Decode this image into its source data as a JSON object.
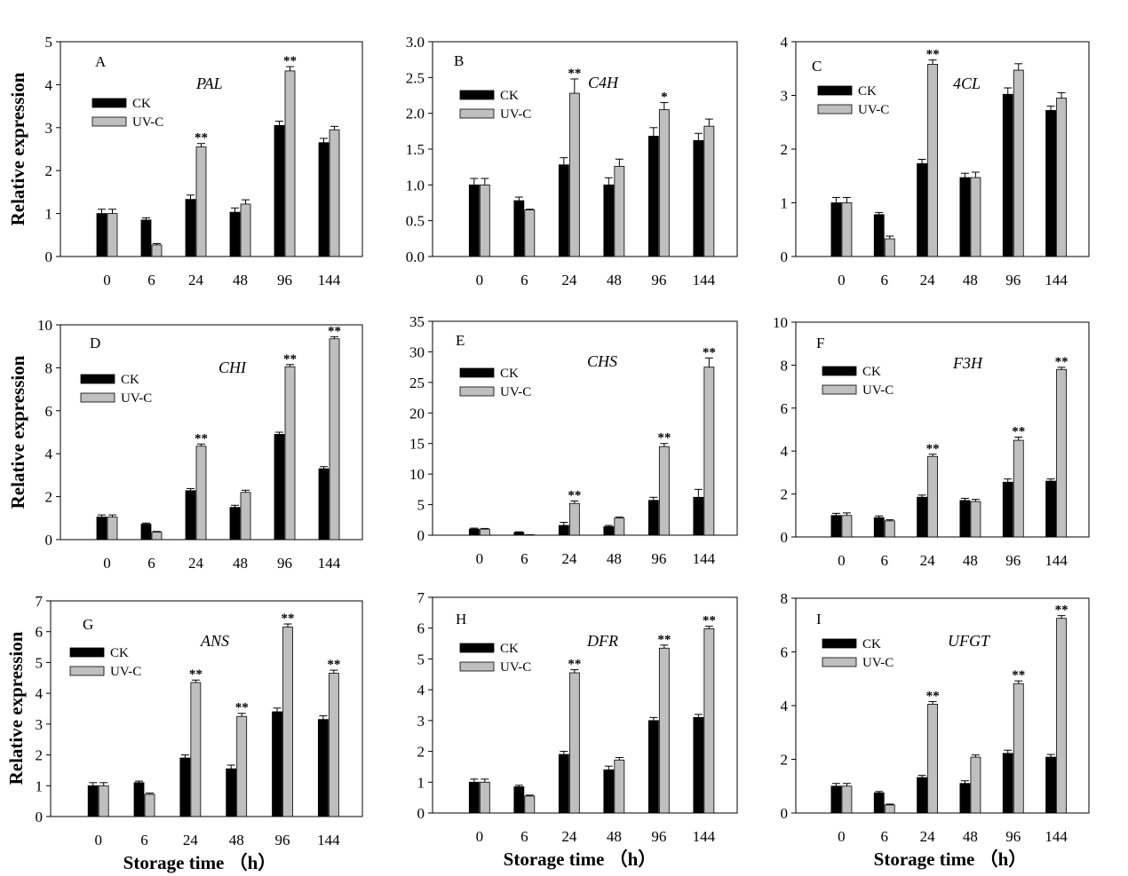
{
  "labels": {
    "ylabel": "Relative expression",
    "xlabel": "Storage time （h）"
  },
  "legend": {
    "ck": "CK",
    "uvc": "UV-C"
  },
  "colors": {
    "ck": "#000000",
    "uvc": "#bfbfbf"
  },
  "chart_data": [
    {
      "type": "bar",
      "letter": "A",
      "gene": "PAL",
      "categories": [
        "0",
        "6",
        "24",
        "48",
        "96",
        "144"
      ],
      "ylim": [
        0,
        5
      ],
      "yticks": [
        "0",
        "1",
        "2",
        "3",
        "4",
        "5"
      ],
      "series": [
        {
          "name": "CK",
          "values": [
            1.0,
            0.85,
            1.33,
            1.03,
            3.05,
            2.65
          ],
          "errors": [
            0.1,
            0.05,
            0.1,
            0.1,
            0.1,
            0.1
          ]
        },
        {
          "name": "UV-C",
          "values": [
            1.0,
            0.27,
            2.55,
            1.22,
            4.32,
            2.95
          ],
          "errors": [
            0.1,
            0.03,
            0.08,
            0.1,
            0.1,
            0.08
          ]
        }
      ],
      "significance": [
        "",
        "",
        "**",
        "",
        "**",
        ""
      ]
    },
    {
      "type": "bar",
      "letter": "B",
      "gene": "C4H",
      "categories": [
        "0",
        "6",
        "24",
        "48",
        "96",
        "144"
      ],
      "ylim": [
        0,
        3
      ],
      "yticks": [
        "0.0",
        "0.5",
        "1.0",
        "1.5",
        "2.0",
        "2.5",
        "3.0"
      ],
      "series": [
        {
          "name": "CK",
          "values": [
            1.0,
            0.78,
            1.28,
            1.0,
            1.68,
            1.62
          ],
          "errors": [
            0.09,
            0.05,
            0.1,
            0.1,
            0.12,
            0.1
          ]
        },
        {
          "name": "UV-C",
          "values": [
            1.0,
            0.65,
            2.28,
            1.26,
            2.05,
            1.82
          ],
          "errors": [
            0.09,
            0.01,
            0.2,
            0.1,
            0.1,
            0.1
          ]
        }
      ],
      "significance": [
        "",
        "",
        "**",
        "",
        "*",
        ""
      ]
    },
    {
      "type": "bar",
      "letter": "C",
      "gene": "4CL",
      "categories": [
        "0",
        "6",
        "24",
        "48",
        "96",
        "144"
      ],
      "ylim": [
        0,
        4
      ],
      "yticks": [
        "0",
        "1",
        "2",
        "3",
        "4"
      ],
      "series": [
        {
          "name": "CK",
          "values": [
            1.0,
            0.78,
            1.73,
            1.47,
            3.02,
            2.72
          ],
          "errors": [
            0.1,
            0.04,
            0.08,
            0.08,
            0.12,
            0.08
          ]
        },
        {
          "name": "UV-C",
          "values": [
            1.0,
            0.33,
            3.58,
            1.47,
            3.47,
            2.95
          ],
          "errors": [
            0.1,
            0.05,
            0.08,
            0.1,
            0.12,
            0.1
          ]
        }
      ],
      "significance": [
        "",
        "",
        "**",
        "",
        "",
        ""
      ]
    },
    {
      "type": "bar",
      "letter": "D",
      "gene": "CHI",
      "categories": [
        "0",
        "6",
        "24",
        "48",
        "96",
        "144"
      ],
      "ylim": [
        0,
        10
      ],
      "yticks": [
        "0",
        "2",
        "4",
        "6",
        "8",
        "10"
      ],
      "series": [
        {
          "name": "CK",
          "values": [
            1.05,
            0.72,
            2.28,
            1.5,
            4.9,
            3.3
          ],
          "errors": [
            0.1,
            0.05,
            0.1,
            0.1,
            0.1,
            0.1
          ]
        },
        {
          "name": "UV-C",
          "values": [
            1.05,
            0.35,
            4.35,
            2.2,
            8.05,
            9.35
          ],
          "errors": [
            0.1,
            0.03,
            0.1,
            0.1,
            0.1,
            0.1
          ]
        }
      ],
      "significance": [
        "",
        "",
        "**",
        "",
        "**",
        "**"
      ]
    },
    {
      "type": "bar",
      "letter": "E",
      "gene": "CHS",
      "categories": [
        "0",
        "6",
        "24",
        "48",
        "96",
        "144"
      ],
      "ylim": [
        0,
        35
      ],
      "yticks": [
        "0",
        "5",
        "10",
        "15",
        "20",
        "25",
        "30",
        "35"
      ],
      "series": [
        {
          "name": "CK",
          "values": [
            1.0,
            0.45,
            1.6,
            1.4,
            5.7,
            6.2
          ],
          "errors": [
            0.15,
            0.1,
            0.5,
            0.2,
            0.5,
            1.3
          ]
        },
        {
          "name": "UV-C",
          "values": [
            1.0,
            0.05,
            5.2,
            2.8,
            14.5,
            27.5
          ],
          "errors": [
            0.1,
            0.02,
            0.4,
            0.15,
            0.5,
            1.5
          ]
        }
      ],
      "significance": [
        "",
        "",
        "**",
        "",
        "**",
        "**"
      ]
    },
    {
      "type": "bar",
      "letter": "F",
      "gene": "F3H",
      "categories": [
        "0",
        "6",
        "24",
        "48",
        "96",
        "144"
      ],
      "ylim": [
        0,
        10
      ],
      "yticks": [
        "0",
        "2",
        "4",
        "6",
        "8",
        "10"
      ],
      "series": [
        {
          "name": "CK",
          "values": [
            1.0,
            0.9,
            1.85,
            1.7,
            2.55,
            2.6
          ],
          "errors": [
            0.1,
            0.08,
            0.1,
            0.1,
            0.15,
            0.1
          ]
        },
        {
          "name": "UV-C",
          "values": [
            1.0,
            0.75,
            3.75,
            1.65,
            4.5,
            7.8
          ],
          "errors": [
            0.12,
            0.05,
            0.1,
            0.1,
            0.15,
            0.1
          ]
        }
      ],
      "significance": [
        "",
        "",
        "**",
        "",
        "**",
        "**"
      ]
    },
    {
      "type": "bar",
      "letter": "G",
      "gene": "ANS",
      "categories": [
        "0",
        "6",
        "24",
        "48",
        "96",
        "144"
      ],
      "ylim": [
        0,
        7
      ],
      "yticks": [
        "0",
        "1",
        "2",
        "3",
        "4",
        "5",
        "6",
        "7"
      ],
      "series": [
        {
          "name": "CK",
          "values": [
            1.0,
            1.1,
            1.9,
            1.55,
            3.4,
            3.15
          ],
          "errors": [
            0.1,
            0.05,
            0.1,
            0.12,
            0.12,
            0.12
          ]
        },
        {
          "name": "UV-C",
          "values": [
            1.0,
            0.72,
            4.35,
            3.25,
            6.15,
            4.65
          ],
          "errors": [
            0.1,
            0.04,
            0.08,
            0.1,
            0.1,
            0.1
          ]
        }
      ],
      "significance": [
        "",
        "",
        "**",
        "**",
        "**",
        "**"
      ]
    },
    {
      "type": "bar",
      "letter": "H",
      "gene": "DFR",
      "categories": [
        "0",
        "6",
        "24",
        "48",
        "96",
        "144"
      ],
      "ylim": [
        0,
        7
      ],
      "yticks": [
        "0",
        "1",
        "2",
        "3",
        "4",
        "5",
        "6",
        "7"
      ],
      "series": [
        {
          "name": "CK",
          "values": [
            1.0,
            0.85,
            1.9,
            1.4,
            3.0,
            3.1
          ],
          "errors": [
            0.1,
            0.05,
            0.1,
            0.12,
            0.1,
            0.1
          ]
        },
        {
          "name": "UV-C",
          "values": [
            1.0,
            0.55,
            4.55,
            1.72,
            5.35,
            5.98
          ],
          "errors": [
            0.1,
            0.03,
            0.1,
            0.08,
            0.1,
            0.08
          ]
        }
      ],
      "significance": [
        "",
        "",
        "**",
        "",
        "**",
        "**"
      ]
    },
    {
      "type": "bar",
      "letter": "I",
      "gene": "UFGT",
      "categories": [
        "0",
        "6",
        "24",
        "48",
        "96",
        "144"
      ],
      "ylim": [
        0,
        8
      ],
      "yticks": [
        "0",
        "2",
        "4",
        "6",
        "8"
      ],
      "series": [
        {
          "name": "CK",
          "values": [
            1.0,
            0.75,
            1.32,
            1.1,
            2.22,
            2.08
          ],
          "errors": [
            0.1,
            0.05,
            0.08,
            0.1,
            0.12,
            0.1
          ]
        },
        {
          "name": "UV-C",
          "values": [
            1.0,
            0.3,
            4.05,
            2.08,
            4.82,
            7.25
          ],
          "errors": [
            0.1,
            0.03,
            0.1,
            0.08,
            0.1,
            0.1
          ]
        }
      ],
      "significance": [
        "",
        "",
        "**",
        "",
        "**",
        "**"
      ]
    }
  ]
}
